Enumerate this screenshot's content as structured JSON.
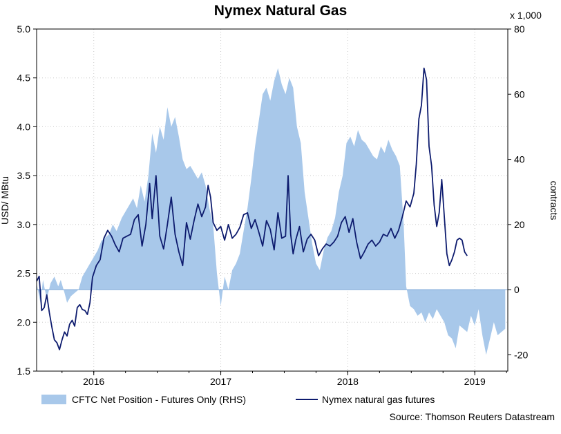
{
  "chart_data": {
    "type": "area+line",
    "title": "Nymex Natural Gas",
    "left_axis": {
      "label": "USD/ MBtu",
      "min": 1.5,
      "max": 5.0,
      "step": 0.5,
      "ticks": [
        "5.0",
        "4.5",
        "4.0",
        "3.5",
        "3.0",
        "2.5",
        "2.0",
        "1.5"
      ]
    },
    "right_axis": {
      "label": "contracts",
      "multiplier_label": "x 1,000",
      "min": -25,
      "max": 80,
      "ticks": [
        "80",
        "60",
        "40",
        "20",
        "0",
        "-20"
      ]
    },
    "x_axis": {
      "start": 2015.55,
      "end": 2019.26,
      "year_labels": [
        {
          "label": "2016",
          "x": 2016.0
        },
        {
          "label": "2017",
          "x": 2017.0
        },
        {
          "label": "2018",
          "x": 2018.0
        },
        {
          "label": "2019",
          "x": 2019.0
        }
      ]
    },
    "grid": true,
    "legend_position": "bottom",
    "series": [
      {
        "name": "CFTC Net Position - Futures Only (RHS)",
        "kind": "area",
        "axis": "right",
        "color": "#a8c8ea",
        "points": [
          [
            2015.55,
            2
          ],
          [
            2015.58,
            -4
          ],
          [
            2015.6,
            3
          ],
          [
            2015.63,
            -3
          ],
          [
            2015.66,
            2
          ],
          [
            2015.69,
            4
          ],
          [
            2015.72,
            1
          ],
          [
            2015.74,
            3
          ],
          [
            2015.77,
            -1
          ],
          [
            2015.79,
            -4
          ],
          [
            2015.82,
            -2
          ],
          [
            2015.85,
            -1
          ],
          [
            2015.88,
            0
          ],
          [
            2015.91,
            4
          ],
          [
            2015.94,
            6
          ],
          [
            2015.97,
            8
          ],
          [
            2016.0,
            10
          ],
          [
            2016.03,
            12
          ],
          [
            2016.06,
            15
          ],
          [
            2016.09,
            16
          ],
          [
            2016.12,
            17
          ],
          [
            2016.15,
            20
          ],
          [
            2016.18,
            18
          ],
          [
            2016.22,
            22
          ],
          [
            2016.25,
            24
          ],
          [
            2016.28,
            26
          ],
          [
            2016.31,
            28
          ],
          [
            2016.34,
            25
          ],
          [
            2016.37,
            32
          ],
          [
            2016.4,
            27
          ],
          [
            2016.43,
            35
          ],
          [
            2016.46,
            48
          ],
          [
            2016.49,
            42
          ],
          [
            2016.52,
            50
          ],
          [
            2016.55,
            46
          ],
          [
            2016.58,
            56
          ],
          [
            2016.61,
            50
          ],
          [
            2016.64,
            53
          ],
          [
            2016.67,
            47
          ],
          [
            2016.7,
            40
          ],
          [
            2016.73,
            37
          ],
          [
            2016.76,
            38
          ],
          [
            2016.79,
            36
          ],
          [
            2016.82,
            34
          ],
          [
            2016.85,
            36
          ],
          [
            2016.88,
            32
          ],
          [
            2016.91,
            25
          ],
          [
            2016.94,
            20
          ],
          [
            2016.97,
            5
          ],
          [
            2017.0,
            -5
          ],
          [
            2017.03,
            4
          ],
          [
            2017.06,
            0
          ],
          [
            2017.09,
            6
          ],
          [
            2017.12,
            8
          ],
          [
            2017.15,
            11
          ],
          [
            2017.18,
            18
          ],
          [
            2017.21,
            25
          ],
          [
            2017.24,
            34
          ],
          [
            2017.27,
            44
          ],
          [
            2017.3,
            52
          ],
          [
            2017.33,
            60
          ],
          [
            2017.36,
            62
          ],
          [
            2017.39,
            58
          ],
          [
            2017.42,
            64
          ],
          [
            2017.45,
            68
          ],
          [
            2017.48,
            63
          ],
          [
            2017.51,
            60
          ],
          [
            2017.54,
            65
          ],
          [
            2017.57,
            62
          ],
          [
            2017.6,
            50
          ],
          [
            2017.63,
            45
          ],
          [
            2017.66,
            30
          ],
          [
            2017.69,
            22
          ],
          [
            2017.72,
            14
          ],
          [
            2017.75,
            8
          ],
          [
            2017.78,
            6
          ],
          [
            2017.81,
            12
          ],
          [
            2017.84,
            16
          ],
          [
            2017.87,
            18
          ],
          [
            2017.9,
            22
          ],
          [
            2017.93,
            30
          ],
          [
            2017.96,
            35
          ],
          [
            2017.99,
            45
          ],
          [
            2018.02,
            47
          ],
          [
            2018.05,
            44
          ],
          [
            2018.08,
            49
          ],
          [
            2018.11,
            46
          ],
          [
            2018.14,
            45
          ],
          [
            2018.17,
            43
          ],
          [
            2018.2,
            41
          ],
          [
            2018.23,
            40
          ],
          [
            2018.26,
            44
          ],
          [
            2018.29,
            42
          ],
          [
            2018.32,
            46
          ],
          [
            2018.35,
            43
          ],
          [
            2018.38,
            41
          ],
          [
            2018.41,
            38
          ],
          [
            2018.44,
            20
          ],
          [
            2018.46,
            1
          ],
          [
            2018.49,
            -5
          ],
          [
            2018.52,
            -6
          ],
          [
            2018.55,
            -8
          ],
          [
            2018.58,
            -7
          ],
          [
            2018.61,
            -10
          ],
          [
            2018.64,
            -7
          ],
          [
            2018.67,
            -9
          ],
          [
            2018.7,
            -6
          ],
          [
            2018.73,
            -8
          ],
          [
            2018.76,
            -10
          ],
          [
            2018.79,
            -14
          ],
          [
            2018.82,
            -15
          ],
          [
            2018.85,
            -18
          ],
          [
            2018.88,
            -11
          ],
          [
            2018.91,
            -12
          ],
          [
            2018.94,
            -13
          ],
          [
            2018.97,
            -8
          ],
          [
            2019.0,
            -11
          ],
          [
            2019.03,
            -6
          ],
          [
            2019.06,
            -14
          ],
          [
            2019.09,
            -20
          ],
          [
            2019.12,
            -15
          ],
          [
            2019.15,
            -10
          ],
          [
            2019.18,
            -14
          ],
          [
            2019.21,
            -13
          ],
          [
            2019.24,
            -12
          ]
        ]
      },
      {
        "name": "Nymex natural gas futures",
        "kind": "line",
        "axis": "left",
        "color": "#0d1b6e",
        "points": [
          [
            2015.55,
            2.42
          ],
          [
            2015.57,
            2.47
          ],
          [
            2015.59,
            2.12
          ],
          [
            2015.61,
            2.15
          ],
          [
            2015.63,
            2.28
          ],
          [
            2015.65,
            2.1
          ],
          [
            2015.67,
            1.95
          ],
          [
            2015.69,
            1.82
          ],
          [
            2015.71,
            1.79
          ],
          [
            2015.73,
            1.72
          ],
          [
            2015.75,
            1.82
          ],
          [
            2015.77,
            1.9
          ],
          [
            2015.79,
            1.86
          ],
          [
            2015.81,
            1.98
          ],
          [
            2015.83,
            2.02
          ],
          [
            2015.85,
            1.96
          ],
          [
            2015.87,
            2.15
          ],
          [
            2015.89,
            2.18
          ],
          [
            2015.91,
            2.13
          ],
          [
            2015.93,
            2.12
          ],
          [
            2015.95,
            2.08
          ],
          [
            2015.97,
            2.2
          ],
          [
            2015.99,
            2.46
          ],
          [
            2016.02,
            2.58
          ],
          [
            2016.05,
            2.64
          ],
          [
            2016.08,
            2.86
          ],
          [
            2016.11,
            2.94
          ],
          [
            2016.14,
            2.88
          ],
          [
            2016.17,
            2.79
          ],
          [
            2016.2,
            2.72
          ],
          [
            2016.23,
            2.86
          ],
          [
            2016.26,
            2.88
          ],
          [
            2016.29,
            2.9
          ],
          [
            2016.32,
            3.05
          ],
          [
            2016.35,
            3.1
          ],
          [
            2016.38,
            2.78
          ],
          [
            2016.41,
            3.0
          ],
          [
            2016.44,
            3.42
          ],
          [
            2016.46,
            3.06
          ],
          [
            2016.49,
            3.5
          ],
          [
            2016.52,
            2.88
          ],
          [
            2016.55,
            2.75
          ],
          [
            2016.58,
            3.0
          ],
          [
            2016.61,
            3.28
          ],
          [
            2016.64,
            2.9
          ],
          [
            2016.67,
            2.72
          ],
          [
            2016.7,
            2.58
          ],
          [
            2016.73,
            3.02
          ],
          [
            2016.76,
            2.85
          ],
          [
            2016.79,
            3.04
          ],
          [
            2016.82,
            3.21
          ],
          [
            2016.85,
            3.08
          ],
          [
            2016.88,
            3.18
          ],
          [
            2016.9,
            3.4
          ],
          [
            2016.92,
            3.28
          ],
          [
            2016.94,
            3.02
          ],
          [
            2016.97,
            2.94
          ],
          [
            2017.0,
            2.98
          ],
          [
            2017.03,
            2.84
          ],
          [
            2017.06,
            3.0
          ],
          [
            2017.09,
            2.86
          ],
          [
            2017.12,
            2.9
          ],
          [
            2017.15,
            2.97
          ],
          [
            2017.18,
            3.1
          ],
          [
            2017.21,
            3.12
          ],
          [
            2017.24,
            2.96
          ],
          [
            2017.27,
            3.05
          ],
          [
            2017.3,
            2.92
          ],
          [
            2017.33,
            2.78
          ],
          [
            2017.36,
            3.04
          ],
          [
            2017.39,
            2.95
          ],
          [
            2017.42,
            2.74
          ],
          [
            2017.45,
            3.12
          ],
          [
            2017.48,
            2.86
          ],
          [
            2017.51,
            2.88
          ],
          [
            2017.53,
            3.5
          ],
          [
            2017.55,
            2.9
          ],
          [
            2017.57,
            2.7
          ],
          [
            2017.59,
            2.84
          ],
          [
            2017.62,
            2.98
          ],
          [
            2017.65,
            2.72
          ],
          [
            2017.68,
            2.85
          ],
          [
            2017.71,
            2.9
          ],
          [
            2017.74,
            2.84
          ],
          [
            2017.77,
            2.68
          ],
          [
            2017.8,
            2.75
          ],
          [
            2017.83,
            2.8
          ],
          [
            2017.86,
            2.78
          ],
          [
            2017.89,
            2.82
          ],
          [
            2017.92,
            2.88
          ],
          [
            2017.95,
            3.02
          ],
          [
            2017.98,
            3.08
          ],
          [
            2018.01,
            2.92
          ],
          [
            2018.04,
            3.06
          ],
          [
            2018.07,
            2.82
          ],
          [
            2018.1,
            2.65
          ],
          [
            2018.13,
            2.72
          ],
          [
            2018.16,
            2.8
          ],
          [
            2018.19,
            2.84
          ],
          [
            2018.22,
            2.78
          ],
          [
            2018.25,
            2.82
          ],
          [
            2018.28,
            2.9
          ],
          [
            2018.31,
            2.88
          ],
          [
            2018.34,
            2.96
          ],
          [
            2018.37,
            2.86
          ],
          [
            2018.4,
            2.94
          ],
          [
            2018.43,
            3.08
          ],
          [
            2018.46,
            3.24
          ],
          [
            2018.49,
            3.18
          ],
          [
            2018.52,
            3.32
          ],
          [
            2018.54,
            3.62
          ],
          [
            2018.56,
            4.08
          ],
          [
            2018.58,
            4.22
          ],
          [
            2018.6,
            4.6
          ],
          [
            2018.62,
            4.48
          ],
          [
            2018.64,
            3.8
          ],
          [
            2018.66,
            3.6
          ],
          [
            2018.68,
            3.2
          ],
          [
            2018.7,
            2.98
          ],
          [
            2018.72,
            3.12
          ],
          [
            2018.74,
            3.46
          ],
          [
            2018.76,
            3.08
          ],
          [
            2018.78,
            2.7
          ],
          [
            2018.8,
            2.58
          ],
          [
            2018.82,
            2.64
          ],
          [
            2018.84,
            2.72
          ],
          [
            2018.86,
            2.84
          ],
          [
            2018.88,
            2.86
          ],
          [
            2018.9,
            2.84
          ],
          [
            2018.92,
            2.72
          ],
          [
            2018.94,
            2.68
          ]
        ]
      }
    ]
  },
  "legend": {
    "area_label": "CFTC Net Position - Futures Only (RHS)",
    "line_label": "Nymex natural gas futures"
  },
  "source": "Source: Thomson Reuters Datastream"
}
